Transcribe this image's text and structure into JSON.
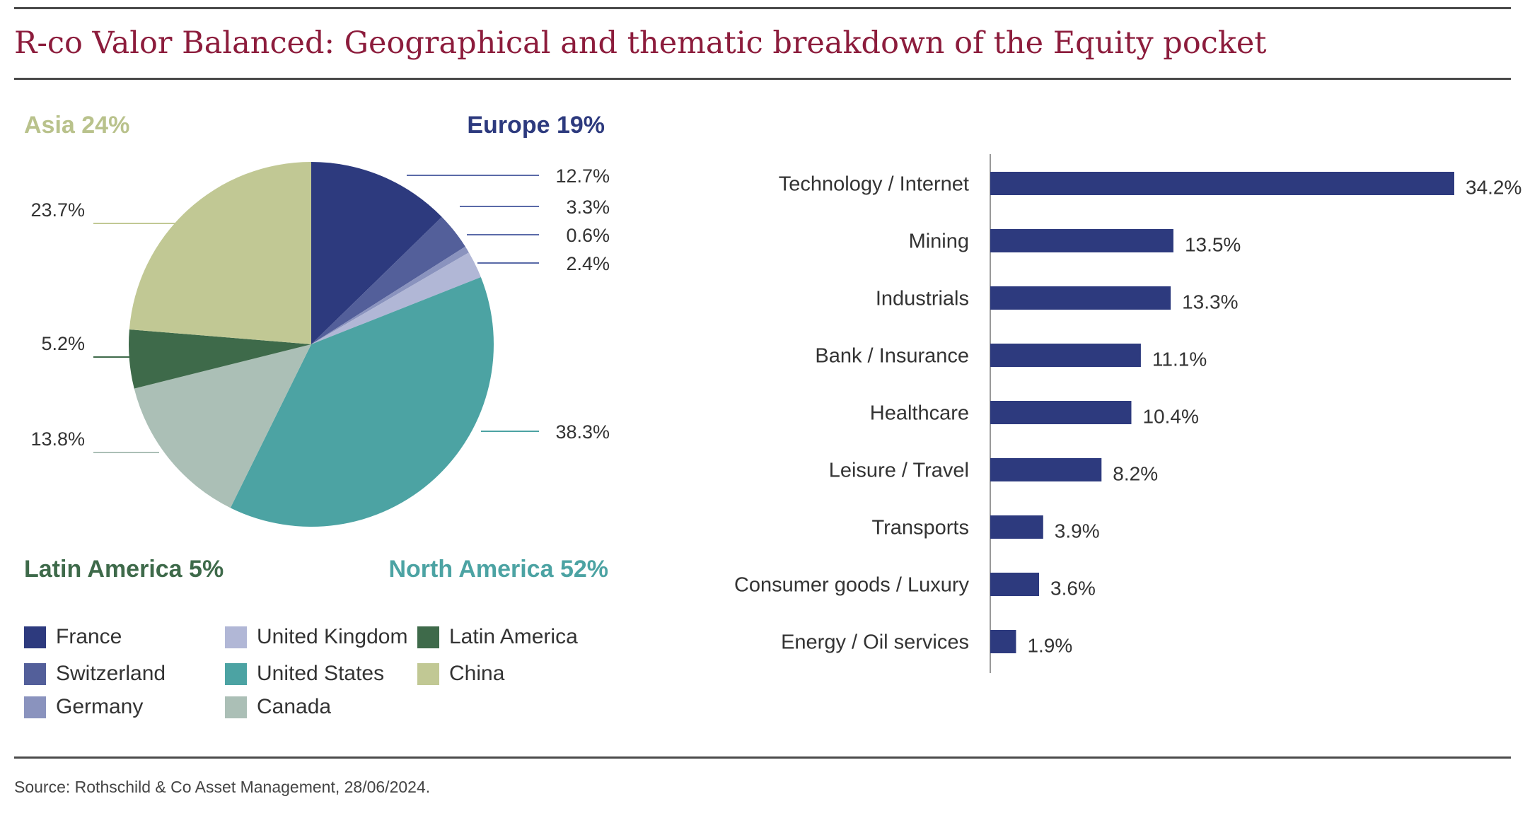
{
  "title": "R-co Valor Balanced: Geographical and thematic breakdown of the Equity pocket",
  "source": "Source: Rothschild & Co Asset Management, 28/06/2024.",
  "regions": {
    "asia": "Asia 24%",
    "europe": "Europe 19%",
    "latin_america": "Latin America 5%",
    "north_america": "North America 52%"
  },
  "colors": {
    "title": "#8c1c3c",
    "asia": "#b9c28c",
    "europe": "#2d3a7e",
    "latin_america": "#3e6a4a",
    "north_america": "#4ca3a3",
    "bars": "#2d3a7e"
  },
  "legend": [
    {
      "label": "France",
      "color": "#2d3a7e"
    },
    {
      "label": "Switzerland",
      "color": "#535f9a"
    },
    {
      "label": "Germany",
      "color": "#8a93be"
    },
    {
      "label": "United Kingdom",
      "color": "#b1b7d6"
    },
    {
      "label": "United States",
      "color": "#4ca3a3"
    },
    {
      "label": "Canada",
      "color": "#abbfb6"
    },
    {
      "label": "Latin America",
      "color": "#3e6a4a"
    },
    {
      "label": "China",
      "color": "#c1c894"
    }
  ],
  "chart_data": [
    {
      "type": "pie",
      "slices": [
        {
          "name": "France",
          "value": 12.7,
          "label": "12.7%",
          "color": "#2d3a7e"
        },
        {
          "name": "Switzerland",
          "value": 3.3,
          "label": "3.3%",
          "color": "#535f9a"
        },
        {
          "name": "Germany",
          "value": 0.6,
          "label": "0.6%",
          "color": "#8a93be"
        },
        {
          "name": "United Kingdom",
          "value": 2.4,
          "label": "2.4%",
          "color": "#b1b7d6"
        },
        {
          "name": "United States",
          "value": 38.3,
          "label": "38.3%",
          "color": "#4ca3a3"
        },
        {
          "name": "Canada",
          "value": 13.8,
          "label": "13.8%",
          "color": "#abbfb6"
        },
        {
          "name": "Latin America",
          "value": 5.2,
          "label": "5.2%",
          "color": "#3e6a4a"
        },
        {
          "name": "China",
          "value": 23.7,
          "label": "23.7%",
          "color": "#c1c894"
        }
      ]
    },
    {
      "type": "bar",
      "orientation": "horizontal",
      "categories": [
        "Technology / Internet",
        "Mining",
        "Industrials",
        "Bank / Insurance",
        "Healthcare",
        "Leisure / Travel",
        "Transports",
        "Consumer goods / Luxury",
        "Energy / Oil services"
      ],
      "values": [
        34.2,
        13.5,
        13.3,
        11.1,
        10.4,
        8.2,
        3.9,
        3.6,
        1.9
      ],
      "value_labels": [
        "34.2%",
        "13.5%",
        "13.3%",
        "11.1%",
        "10.4%",
        "8.2%",
        "3.9%",
        "3.6%",
        "1.9%"
      ],
      "color": "#2d3a7e"
    }
  ]
}
